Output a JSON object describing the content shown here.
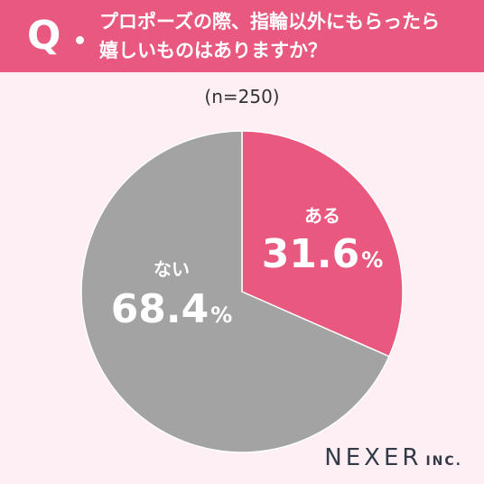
{
  "header": {
    "q_mark": "Q",
    "question_line1": "プロポーズの際、指輪以外にもらったら",
    "question_line2": "嬉しいものはありますか？"
  },
  "sample_note": "(n=250)",
  "brand": {
    "name": "NEXER",
    "suffix": "INC."
  },
  "colors": {
    "header": "#e8587f",
    "background": "#fdeff3",
    "slice_yes": "#e8587f",
    "slice_no": "#a3a3a3",
    "brand_text": "#333a48"
  },
  "chart_data": {
    "type": "pie",
    "categories": [
      "ある",
      "ない"
    ],
    "values": [
      31.6,
      68.4
    ],
    "value_labels": [
      "31.6",
      "68.4"
    ],
    "unit": "%",
    "colors": [
      "#e8587f",
      "#a3a3a3"
    ],
    "start": "12 o'clock",
    "direction": "clockwise"
  }
}
